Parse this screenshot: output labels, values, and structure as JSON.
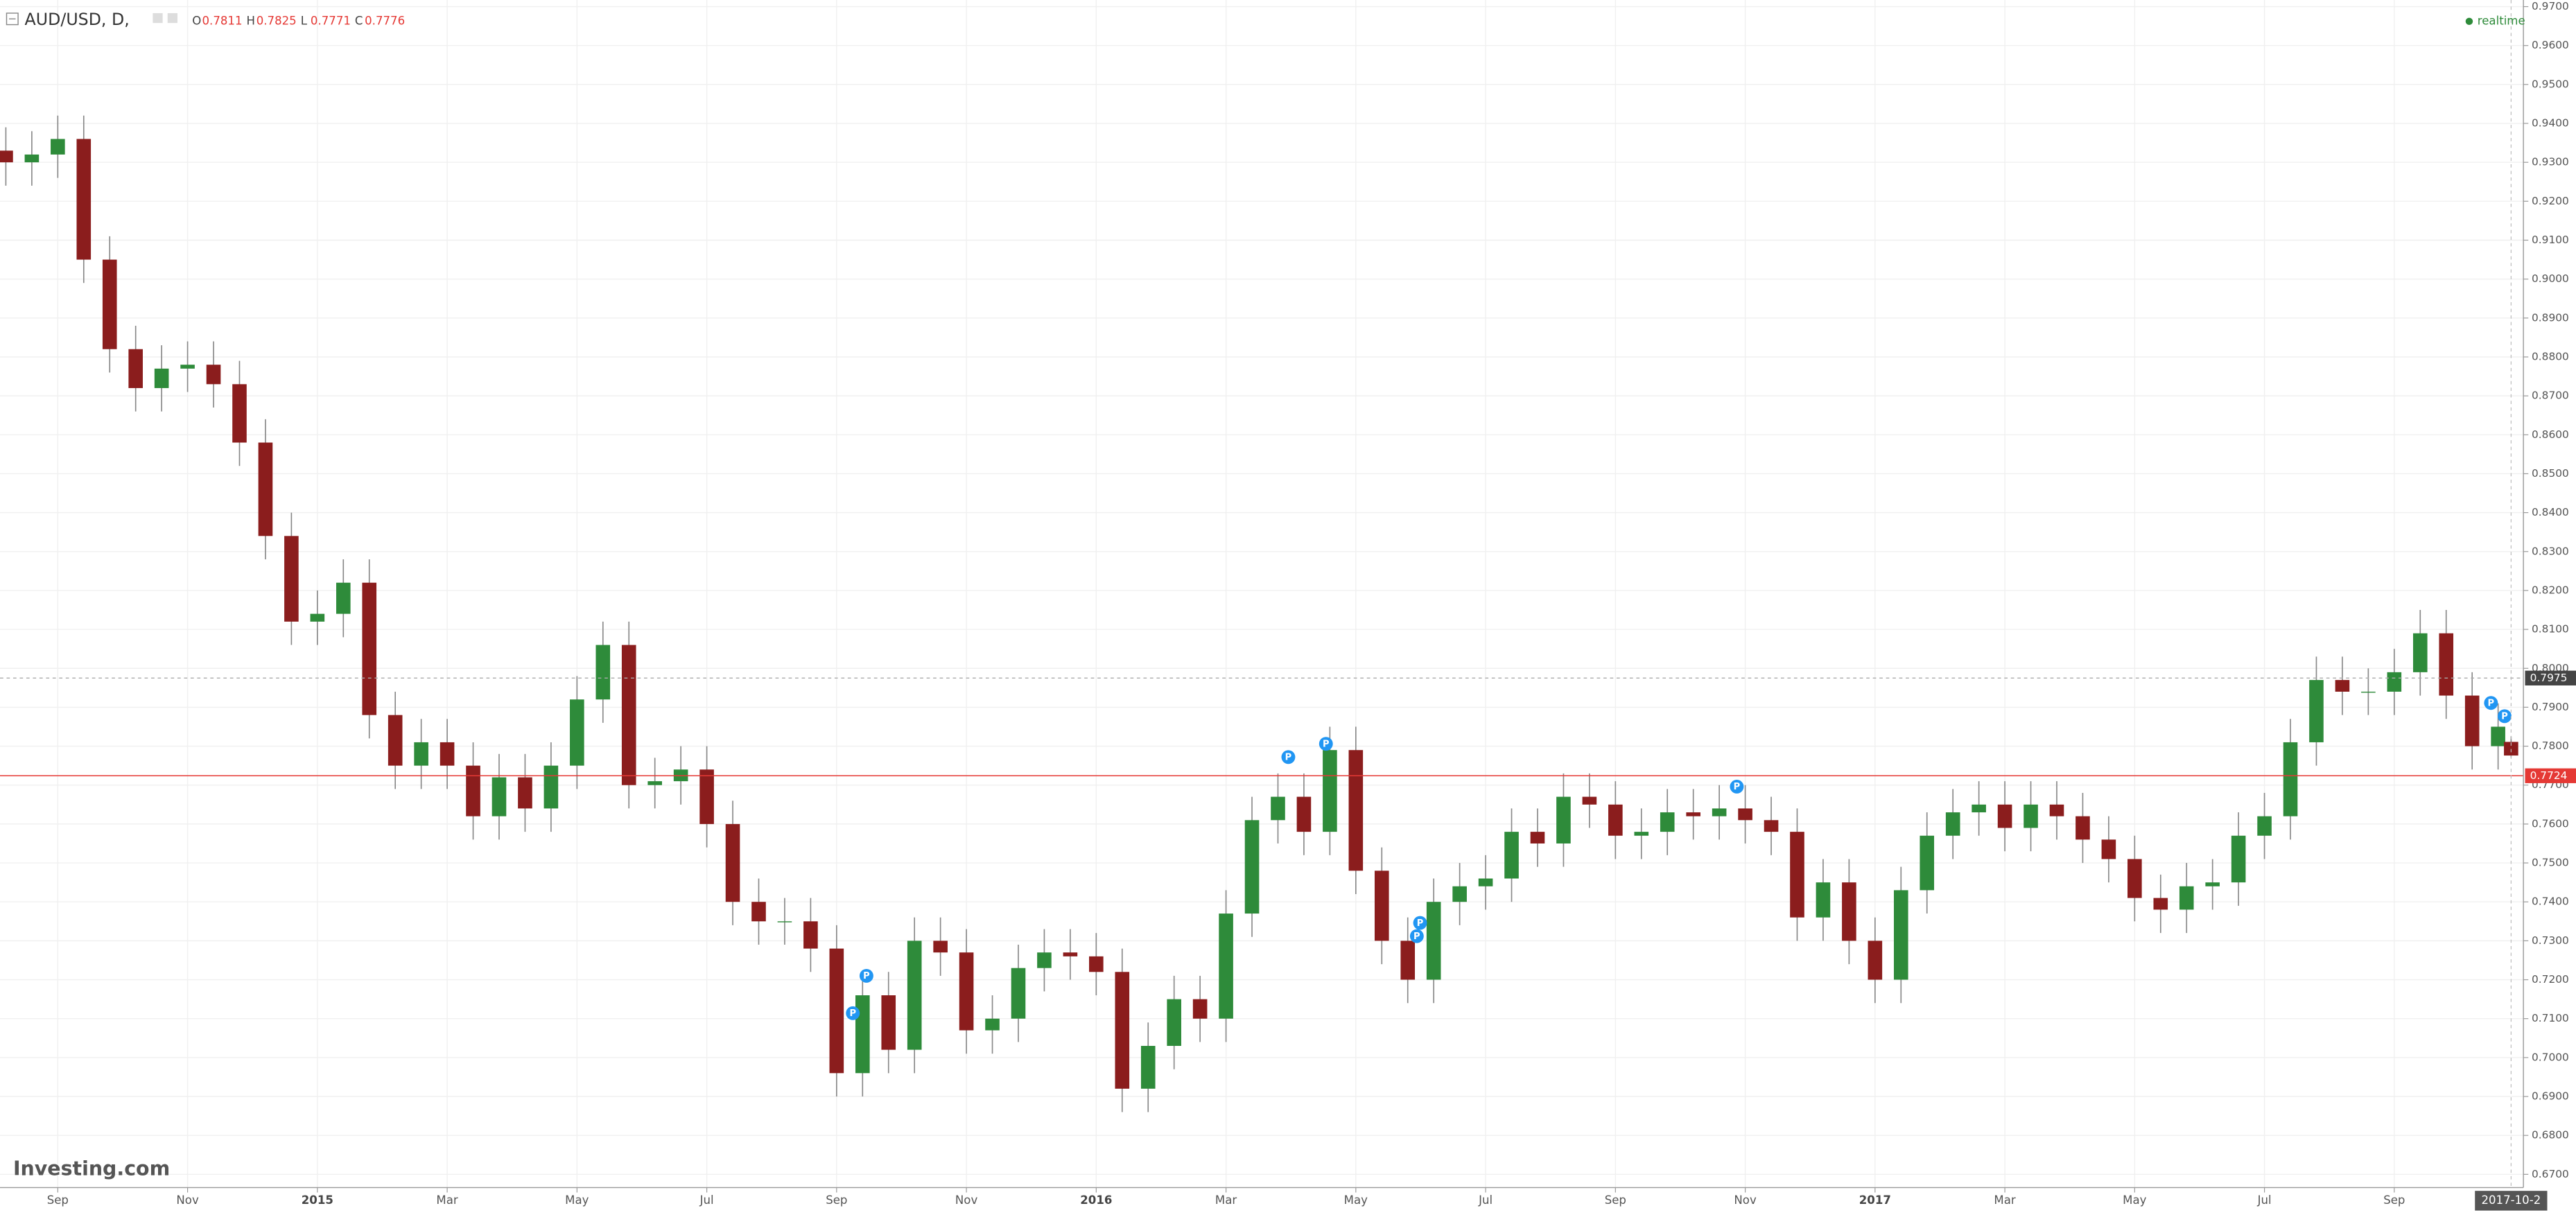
{
  "chart_data": {
    "type": "candlestick",
    "symbol": "AUD/USD, D,",
    "ohlc_labels": [
      "O",
      "H",
      "L",
      "C"
    ],
    "status": "realtime",
    "logo": "Investing.com",
    "date_label": "2017-10-2",
    "up_color": "#2e8b3a",
    "down_color": "#8b1d1d",
    "wick_color": "#888888",
    "grid": true,
    "x": [
      7.2,
      7.6,
      8,
      8.4,
      8.8,
      9.2,
      9.6,
      10,
      10.4,
      10.8,
      11.2,
      11.6,
      12,
      12.4,
      12.8,
      13.2,
      13.6,
      14,
      14.4,
      14.8,
      15.2,
      15.6,
      16,
      16.4,
      16.8,
      17.2,
      17.6,
      18,
      18.4,
      18.8,
      19.2,
      19.6,
      20,
      20.4,
      20.8,
      21.2,
      21.6,
      22,
      22.4,
      22.8,
      23.2,
      23.6,
      24,
      24.4,
      24.8,
      25.2,
      25.6,
      26,
      26.4,
      26.8,
      27.2,
      27.6,
      28,
      28.4,
      28.8,
      29.2,
      29.6,
      30,
      30.4,
      30.8,
      31.2,
      31.6,
      32,
      32.4,
      32.8,
      33.2,
      33.6,
      34,
      34.4,
      34.8,
      35.2,
      35.6,
      36,
      36.4,
      36.8,
      37.2,
      37.6,
      38,
      38.4,
      38.8,
      39.2,
      39.6,
      40,
      40.4,
      40.8,
      41.2,
      41.6,
      42,
      42.4,
      42.8,
      43.2,
      43.6,
      44,
      44.4,
      44.8,
      45.2,
      45.6,
      45.8
    ],
    "open": [
      0.933,
      0.93,
      0.932,
      0.936,
      0.905,
      0.882,
      0.872,
      0.877,
      0.878,
      0.873,
      0.858,
      0.834,
      0.812,
      0.814,
      0.822,
      0.788,
      0.775,
      0.781,
      0.775,
      0.762,
      0.772,
      0.764,
      0.775,
      0.792,
      0.806,
      0.77,
      0.771,
      0.774,
      0.76,
      0.74,
      0.735,
      0.735,
      0.728,
      0.696,
      0.716,
      0.702,
      0.73,
      0.727,
      0.707,
      0.71,
      0.723,
      0.727,
      0.726,
      0.722,
      0.692,
      0.703,
      0.715,
      0.71,
      0.737,
      0.761,
      0.767,
      0.758,
      0.779,
      0.748,
      0.73,
      0.72,
      0.74,
      0.744,
      0.746,
      0.758,
      0.755,
      0.767,
      0.765,
      0.757,
      0.758,
      0.763,
      0.762,
      0.764,
      0.761,
      0.758,
      0.736,
      0.745,
      0.73,
      0.72,
      0.743,
      0.757,
      0.763,
      0.765,
      0.759,
      0.765,
      0.762,
      0.756,
      0.751,
      0.741,
      0.738,
      0.744,
      0.745,
      0.757,
      0.762,
      0.781,
      0.797,
      0.794,
      0.794,
      0.799,
      0.809,
      0.793,
      0.78,
      0.7811
    ],
    "high": [
      0.939,
      0.938,
      0.942,
      0.942,
      0.911,
      0.888,
      0.883,
      0.884,
      0.884,
      0.879,
      0.864,
      0.84,
      0.82,
      0.828,
      0.828,
      0.794,
      0.787,
      0.787,
      0.781,
      0.778,
      0.778,
      0.781,
      0.798,
      0.812,
      0.812,
      0.777,
      0.78,
      0.78,
      0.766,
      0.746,
      0.741,
      0.741,
      0.734,
      0.722,
      0.722,
      0.736,
      0.736,
      0.733,
      0.716,
      0.729,
      0.733,
      0.733,
      0.732,
      0.728,
      0.709,
      0.721,
      0.721,
      0.743,
      0.767,
      0.773,
      0.773,
      0.785,
      0.785,
      0.754,
      0.736,
      0.746,
      0.75,
      0.752,
      0.764,
      0.764,
      0.773,
      0.773,
      0.771,
      0.764,
      0.769,
      0.769,
      0.77,
      0.77,
      0.767,
      0.764,
      0.751,
      0.751,
      0.736,
      0.749,
      0.763,
      0.769,
      0.771,
      0.771,
      0.771,
      0.771,
      0.768,
      0.762,
      0.757,
      0.747,
      0.75,
      0.751,
      0.763,
      0.768,
      0.787,
      0.803,
      0.803,
      0.8,
      0.805,
      0.815,
      0.815,
      0.799,
      0.791,
      0.7825
    ],
    "low": [
      0.924,
      0.924,
      0.926,
      0.899,
      0.876,
      0.866,
      0.866,
      0.871,
      0.867,
      0.852,
      0.828,
      0.806,
      0.806,
      0.808,
      0.782,
      0.769,
      0.769,
      0.769,
      0.756,
      0.756,
      0.758,
      0.758,
      0.769,
      0.786,
      0.764,
      0.764,
      0.765,
      0.754,
      0.734,
      0.729,
      0.729,
      0.722,
      0.69,
      0.69,
      0.696,
      0.696,
      0.721,
      0.701,
      0.701,
      0.704,
      0.717,
      0.72,
      0.716,
      0.686,
      0.686,
      0.697,
      0.704,
      0.704,
      0.731,
      0.755,
      0.752,
      0.752,
      0.742,
      0.724,
      0.714,
      0.714,
      0.734,
      0.738,
      0.74,
      0.749,
      0.749,
      0.759,
      0.751,
      0.751,
      0.752,
      0.756,
      0.756,
      0.755,
      0.752,
      0.73,
      0.73,
      0.724,
      0.714,
      0.714,
      0.737,
      0.751,
      0.757,
      0.753,
      0.753,
      0.756,
      0.75,
      0.745,
      0.735,
      0.732,
      0.732,
      0.738,
      0.739,
      0.751,
      0.756,
      0.775,
      0.788,
      0.788,
      0.788,
      0.793,
      0.787,
      0.774,
      0.774,
      0.7771
    ],
    "close": [
      0.93,
      0.932,
      0.936,
      0.905,
      0.882,
      0.872,
      0.877,
      0.878,
      0.873,
      0.858,
      0.834,
      0.812,
      0.814,
      0.822,
      0.788,
      0.775,
      0.781,
      0.775,
      0.762,
      0.772,
      0.764,
      0.775,
      0.792,
      0.806,
      0.77,
      0.771,
      0.774,
      0.76,
      0.74,
      0.735,
      0.735,
      0.728,
      0.696,
      0.716,
      0.702,
      0.73,
      0.727,
      0.707,
      0.71,
      0.723,
      0.727,
      0.726,
      0.722,
      0.692,
      0.703,
      0.715,
      0.71,
      0.737,
      0.761,
      0.767,
      0.758,
      0.779,
      0.748,
      0.73,
      0.72,
      0.74,
      0.744,
      0.746,
      0.758,
      0.755,
      0.767,
      0.765,
      0.757,
      0.758,
      0.763,
      0.762,
      0.764,
      0.761,
      0.758,
      0.736,
      0.745,
      0.73,
      0.72,
      0.743,
      0.757,
      0.763,
      0.765,
      0.759,
      0.765,
      0.762,
      0.756,
      0.751,
      0.741,
      0.738,
      0.744,
      0.745,
      0.757,
      0.762,
      0.781,
      0.797,
      0.794,
      0.794,
      0.799,
      0.809,
      0.793,
      0.78,
      0.785,
      0.7776
    ],
    "xlim": [
      7.11,
      45.99
    ],
    "ylim": [
      0.6666,
      0.9717
    ],
    "xticks": [
      {
        "value": 8,
        "label": "Sep"
      },
      {
        "value": 10,
        "label": "Nov"
      },
      {
        "value": 12,
        "label": "2015"
      },
      {
        "value": 14,
        "label": "Mar"
      },
      {
        "value": 16,
        "label": "May"
      },
      {
        "value": 18,
        "label": "Jul"
      },
      {
        "value": 20,
        "label": "Sep"
      },
      {
        "value": 22,
        "label": "Nov"
      },
      {
        "value": 24,
        "label": "2016"
      },
      {
        "value": 26,
        "label": "Mar"
      },
      {
        "value": 28,
        "label": "May"
      },
      {
        "value": 30,
        "label": "Jul"
      },
      {
        "value": 32,
        "label": "Sep"
      },
      {
        "value": 34,
        "label": "Nov"
      },
      {
        "value": 36,
        "label": "2017"
      },
      {
        "value": 38,
        "label": "Mar"
      },
      {
        "value": 40,
        "label": "May"
      },
      {
        "value": 42,
        "label": "Jul"
      },
      {
        "value": 44,
        "label": "Sep"
      }
    ],
    "yticks": [
      {
        "value": 0.67,
        "label": "0.6700"
      },
      {
        "value": 0.68,
        "label": "0.6800"
      },
      {
        "value": 0.69,
        "label": "0.6900"
      },
      {
        "value": 0.7,
        "label": "0.7000"
      },
      {
        "value": 0.71,
        "label": "0.7100"
      },
      {
        "value": 0.72,
        "label": "0.7200"
      },
      {
        "value": 0.73,
        "label": "0.7300"
      },
      {
        "value": 0.74,
        "label": "0.7400"
      },
      {
        "value": 0.75,
        "label": "0.7500"
      },
      {
        "value": 0.76,
        "label": "0.7600"
      },
      {
        "value": 0.77,
        "label": "0.7700"
      },
      {
        "value": 0.78,
        "label": "0.7800"
      },
      {
        "value": 0.79,
        "label": "0.7900"
      },
      {
        "value": 0.8,
        "label": "0.8000"
      },
      {
        "value": 0.81,
        "label": "0.8100"
      },
      {
        "value": 0.82,
        "label": "0.8200"
      },
      {
        "value": 0.83,
        "label": "0.8300"
      },
      {
        "value": 0.84,
        "label": "0.8400"
      },
      {
        "value": 0.85,
        "label": "0.8500"
      },
      {
        "value": 0.86,
        "label": "0.8600"
      },
      {
        "value": 0.87,
        "label": "0.8700"
      },
      {
        "value": 0.88,
        "label": "0.8800"
      },
      {
        "value": 0.89,
        "label": "0.8900"
      },
      {
        "value": 0.9,
        "label": "0.9000"
      },
      {
        "value": 0.91,
        "label": "0.9100"
      },
      {
        "value": 0.92,
        "label": "0.9200"
      },
      {
        "value": 0.93,
        "label": "0.9300"
      },
      {
        "value": 0.94,
        "label": "0.9400"
      },
      {
        "value": 0.95,
        "label": "0.9500"
      },
      {
        "value": 0.96,
        "label": "0.9600"
      },
      {
        "value": 0.97,
        "label": "0.9700"
      }
    ],
    "hlines": [
      {
        "value": 0.7975,
        "color": "#aaaaaa",
        "dashed": true,
        "label_bg": "#444444"
      },
      {
        "value": 0.7724,
        "color": "#e53935",
        "dashed": false,
        "label_bg": "#e53935"
      }
    ],
    "markers": [
      {
        "x": 26.96,
        "y": 0.7772,
        "label": "P"
      },
      {
        "x": 27.54,
        "y": 0.7806,
        "label": "P"
      },
      {
        "x": 20.46,
        "y": 0.721,
        "label": "P"
      },
      {
        "x": 20.25,
        "y": 0.7114,
        "label": "P"
      },
      {
        "x": 28.99,
        "y": 0.7346,
        "label": "P"
      },
      {
        "x": 28.94,
        "y": 0.7312,
        "label": "P"
      },
      {
        "x": 33.87,
        "y": 0.7696,
        "label": "P"
      },
      {
        "x": 45.49,
        "y": 0.7911,
        "label": "P"
      },
      {
        "x": 45.7,
        "y": 0.7877,
        "label": "P"
      }
    ]
  }
}
